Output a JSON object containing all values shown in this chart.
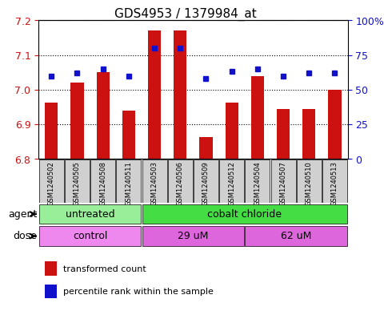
{
  "title": "GDS4953 / 1379984_at",
  "samples": [
    "GSM1240502",
    "GSM1240505",
    "GSM1240508",
    "GSM1240511",
    "GSM1240503",
    "GSM1240506",
    "GSM1240509",
    "GSM1240512",
    "GSM1240504",
    "GSM1240507",
    "GSM1240510",
    "GSM1240513"
  ],
  "bar_values": [
    6.963,
    7.02,
    7.05,
    6.94,
    7.17,
    7.17,
    6.862,
    6.963,
    7.04,
    6.945,
    6.945,
    7.0
  ],
  "percentile_values": [
    60,
    62,
    65,
    60,
    80,
    80,
    58,
    63,
    65,
    60,
    62,
    62
  ],
  "ymin": 6.8,
  "ymax": 7.2,
  "yticks": [
    6.8,
    6.9,
    7.0,
    7.1,
    7.2
  ],
  "right_yticks": [
    0,
    25,
    50,
    75,
    100
  ],
  "right_ylabels": [
    "0",
    "25",
    "50",
    "75",
    "100%"
  ],
  "bar_color": "#cc1111",
  "percentile_color": "#1111cc",
  "agent_groups": [
    {
      "label": "untreated",
      "start": 0,
      "end": 4,
      "color": "#99ee99"
    },
    {
      "label": "cobalt chloride",
      "start": 4,
      "end": 12,
      "color": "#44dd44"
    }
  ],
  "dose_groups": [
    {
      "label": "control",
      "start": 0,
      "end": 4,
      "color": "#ee88ee"
    },
    {
      "label": "29 uM",
      "start": 4,
      "end": 8,
      "color": "#dd66dd"
    },
    {
      "label": "62 uM",
      "start": 8,
      "end": 12,
      "color": "#dd66dd"
    }
  ],
  "legend_bar_label": "transformed count",
  "legend_pct_label": "percentile rank within the sample",
  "bar_width": 0.5,
  "agent_label": "agent",
  "dose_label": "dose"
}
